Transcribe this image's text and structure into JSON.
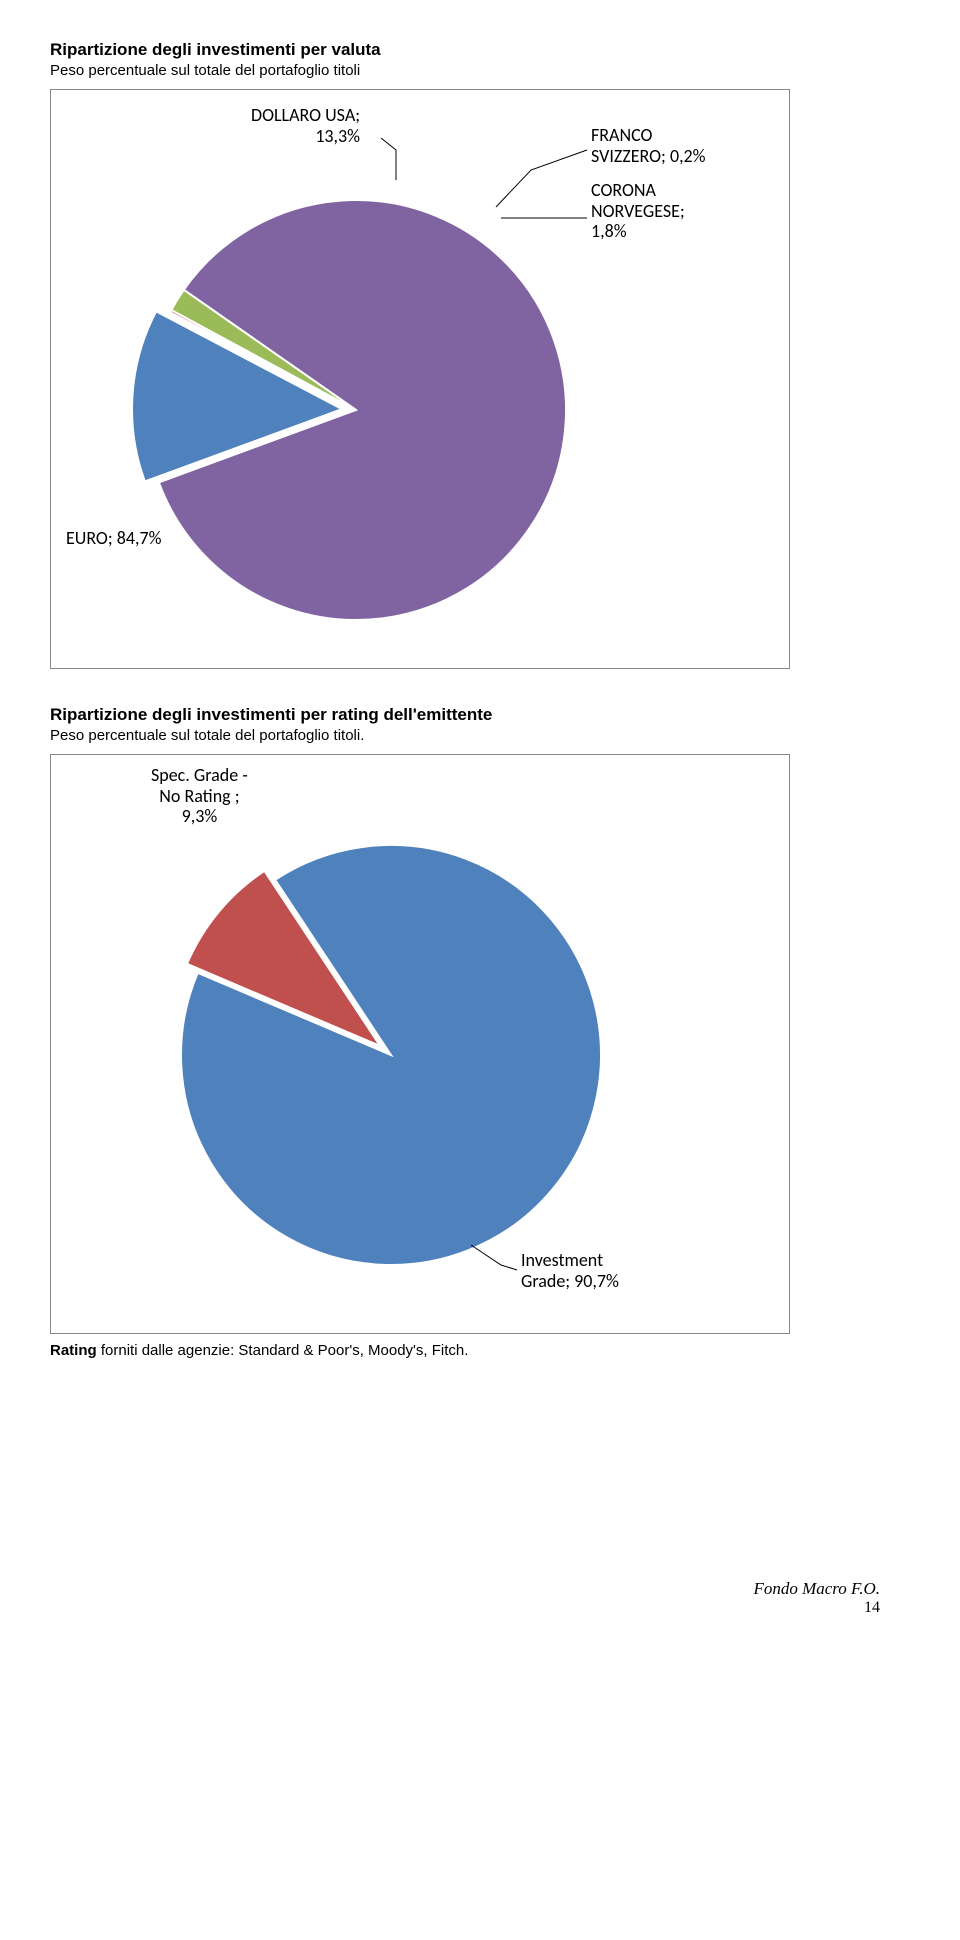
{
  "section1": {
    "title": "Ripartizione degli investimenti per valuta",
    "subtitle": "Peso percentuale sul totale del portafoglio titoli",
    "chart": {
      "type": "pie",
      "radius": 210,
      "explode_gap": 14,
      "slice_stroke": "#ffffff",
      "slice_stroke_width": 2,
      "slices": [
        {
          "name": "EURO",
          "value": 84.7,
          "color": "#8064a2",
          "exploded": false
        },
        {
          "name": "DOLLARO USA",
          "value": 13.3,
          "color": "#4f81bd",
          "exploded": true
        },
        {
          "name": "FRANCO SVIZZERO",
          "value": 0.2,
          "color": "#c0504d",
          "exploded": false
        },
        {
          "name": "CORONA NORVEGESE",
          "value": 1.8,
          "color": "#9bbb59",
          "exploded": false
        }
      ],
      "labels": {
        "font_size": 18,
        "color": "#000000",
        "usa": {
          "text_lines": [
            "DOLLARO USA;",
            "13,3%"
          ]
        },
        "chf": {
          "text_lines": [
            "FRANCO",
            "SVIZZERO; 0,2%"
          ]
        },
        "nok": {
          "text_lines": [
            "CORONA",
            "NORVEGESE;",
            "1,8%"
          ]
        },
        "eur": {
          "text_lines": [
            "EURO; 84,7%"
          ]
        }
      }
    }
  },
  "section2": {
    "title": "Ripartizione degli investimenti per rating dell'emittente",
    "subtitle": "Peso percentuale sul totale del portafoglio titoli.",
    "chart": {
      "type": "pie",
      "radius": 210,
      "explode_gap": 14,
      "slice_stroke": "#ffffff",
      "slice_stroke_width": 2,
      "slices": [
        {
          "name": "Investment Grade",
          "value": 90.7,
          "color": "#4f81bd",
          "exploded": false
        },
        {
          "name": "Spec. Grade - No Rating",
          "value": 9.3,
          "color": "#c0504d",
          "exploded": true
        }
      ],
      "labels": {
        "font_size": 18,
        "color": "#000000",
        "spec": {
          "text_lines": [
            "Spec. Grade -",
            "No Rating ;",
            "9,3%"
          ]
        },
        "inv": {
          "text_lines": [
            "Investment",
            "Grade; 90,7%"
          ]
        }
      }
    },
    "footer_note": "Rating forniti dalle agenzie: Standard & Poor's, Moody's, Fitch."
  },
  "page_footer": {
    "brand": "Fondo Macro F.O.",
    "page_number": "14"
  }
}
